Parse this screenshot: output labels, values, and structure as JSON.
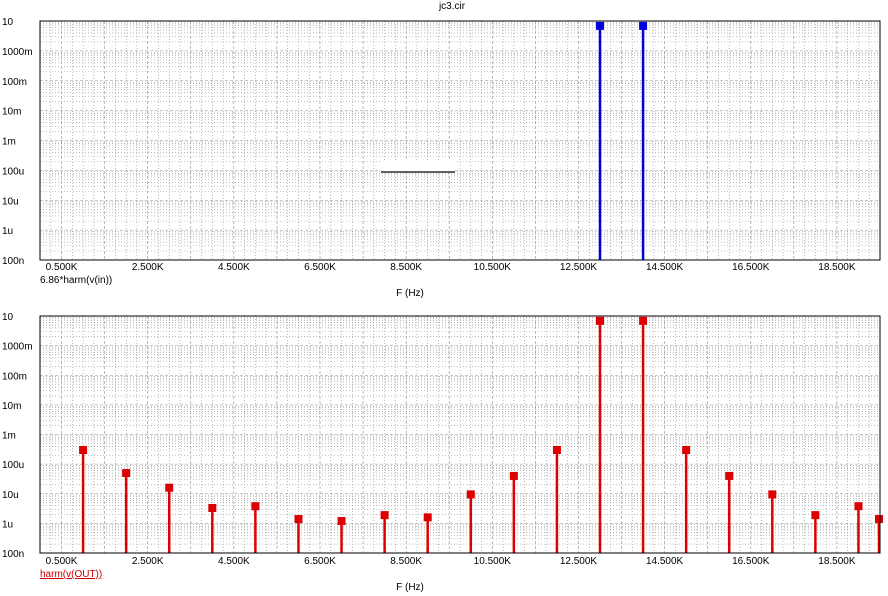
{
  "title": "jc3.cir",
  "x_axis_label": "F (Hz)",
  "x_tick_labels": [
    "0.500K",
    "2.500K",
    "4.500K",
    "6.500K",
    "8.500K",
    "10.500K",
    "12.500K",
    "14.500K",
    "16.500K",
    "18.500K"
  ],
  "y_tick_labels": [
    "10",
    "1000m",
    "100m",
    "10m",
    "1m",
    "100u",
    "10u",
    "1u",
    "100n"
  ],
  "colors": {
    "top_series": "#0000dd",
    "bottom_series": "#dd0000",
    "grid": "#909090",
    "background": "#ffffff"
  },
  "chart_data": [
    {
      "type": "bar",
      "title": "jc3.cir",
      "xlabel": "F (Hz)",
      "ylabel": "",
      "y_scale": "log",
      "ylim": [
        1e-07,
        10
      ],
      "xlim": [
        0,
        19500
      ],
      "grid": true,
      "series": [
        {
          "name": "6.86*harm(v(in))",
          "x": [
            13000,
            14000
          ],
          "values": [
            6.86,
            6.86
          ]
        }
      ]
    },
    {
      "type": "bar",
      "title": "",
      "xlabel": "F (Hz)",
      "ylabel": "",
      "y_scale": "log",
      "ylim": [
        1e-07,
        10
      ],
      "xlim": [
        0,
        19500
      ],
      "grid": true,
      "series": [
        {
          "name": "harm(v(OUT))",
          "x": [
            1000,
            2000,
            3000,
            4000,
            5000,
            6000,
            7000,
            8000,
            9000,
            10000,
            11000,
            12000,
            13000,
            14000,
            15000,
            16000,
            17000,
            18000,
            19000,
            20000
          ],
          "values": [
            0.0003,
            5e-05,
            1.6e-05,
            3.3e-06,
            3.8e-06,
            1.4e-06,
            1.2e-06,
            1.9e-06,
            1.6e-06,
            9.5e-06,
            4e-05,
            0.0003,
            6.86,
            6.86,
            0.0003,
            4e-05,
            9.5e-06,
            1.9e-06,
            3.8e-06,
            1.4e-06
          ]
        }
      ]
    }
  ]
}
